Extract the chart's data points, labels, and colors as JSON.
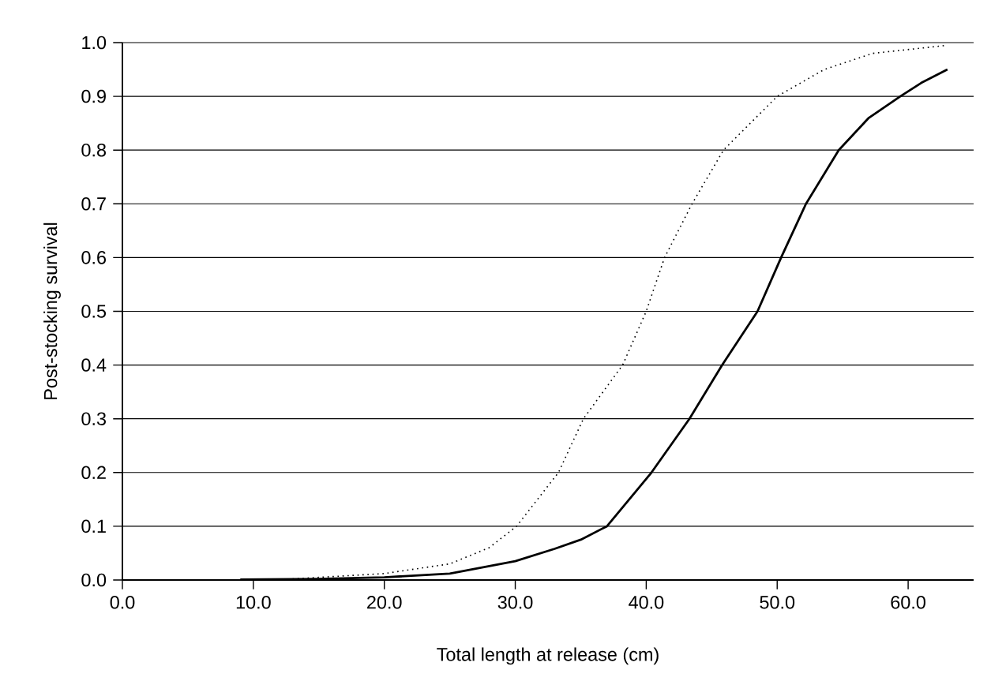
{
  "chart_data": {
    "type": "line",
    "xlabel": "Total length at release (cm)",
    "ylabel": "Post-stocking survival",
    "xlim": [
      0,
      65
    ],
    "ylim": [
      0,
      1
    ],
    "xticks": [
      {
        "value": 0,
        "label": "0.0"
      },
      {
        "value": 10,
        "label": "10.0"
      },
      {
        "value": 20,
        "label": "20.0"
      },
      {
        "value": 30,
        "label": "30.0"
      },
      {
        "value": 40,
        "label": "40.0"
      },
      {
        "value": 50,
        "label": "50.0"
      },
      {
        "value": 60,
        "label": "60.0"
      }
    ],
    "yticks": [
      {
        "value": 0,
        "label": "0.0"
      },
      {
        "value": 0.1,
        "label": "0.1"
      },
      {
        "value": 0.2,
        "label": "0.2"
      },
      {
        "value": 0.3,
        "label": "0.3"
      },
      {
        "value": 0.4,
        "label": "0.4"
      },
      {
        "value": 0.5,
        "label": "0.5"
      },
      {
        "value": 0.6,
        "label": "0.6"
      },
      {
        "value": 0.7,
        "label": "0.7"
      },
      {
        "value": 0.8,
        "label": "0.8"
      },
      {
        "value": 0.9,
        "label": "0.9"
      },
      {
        "value": 1,
        "label": "1.0"
      }
    ],
    "grid": "y",
    "marker": "none",
    "series": [
      {
        "color": "#000000",
        "line_style": "solid",
        "x": [
          9,
          15,
          20,
          25,
          30,
          33,
          35,
          37,
          40.4,
          43.3,
          45.8,
          48.5,
          50.3,
          52.2,
          54.7,
          57,
          59.4,
          61,
          63
        ],
        "values": [
          0.001,
          0.002,
          0.005,
          0.012,
          0.035,
          0.058,
          0.075,
          0.1,
          0.2,
          0.3,
          0.4,
          0.5,
          0.6,
          0.7,
          0.8,
          0.86,
          0.9,
          0.925,
          0.95
        ]
      },
      {
        "color": "#000000",
        "line_style": "dotted",
        "x": [
          13,
          20,
          25,
          28,
          30.1,
          33.3,
          35.2,
          38.2,
          40,
          41.4,
          43.5,
          45.9,
          50,
          53.6,
          57.3,
          63
        ],
        "values": [
          0.002,
          0.012,
          0.03,
          0.06,
          0.1,
          0.2,
          0.3,
          0.4,
          0.5,
          0.6,
          0.7,
          0.8,
          0.9,
          0.95,
          0.98,
          0.995
        ]
      }
    ]
  }
}
